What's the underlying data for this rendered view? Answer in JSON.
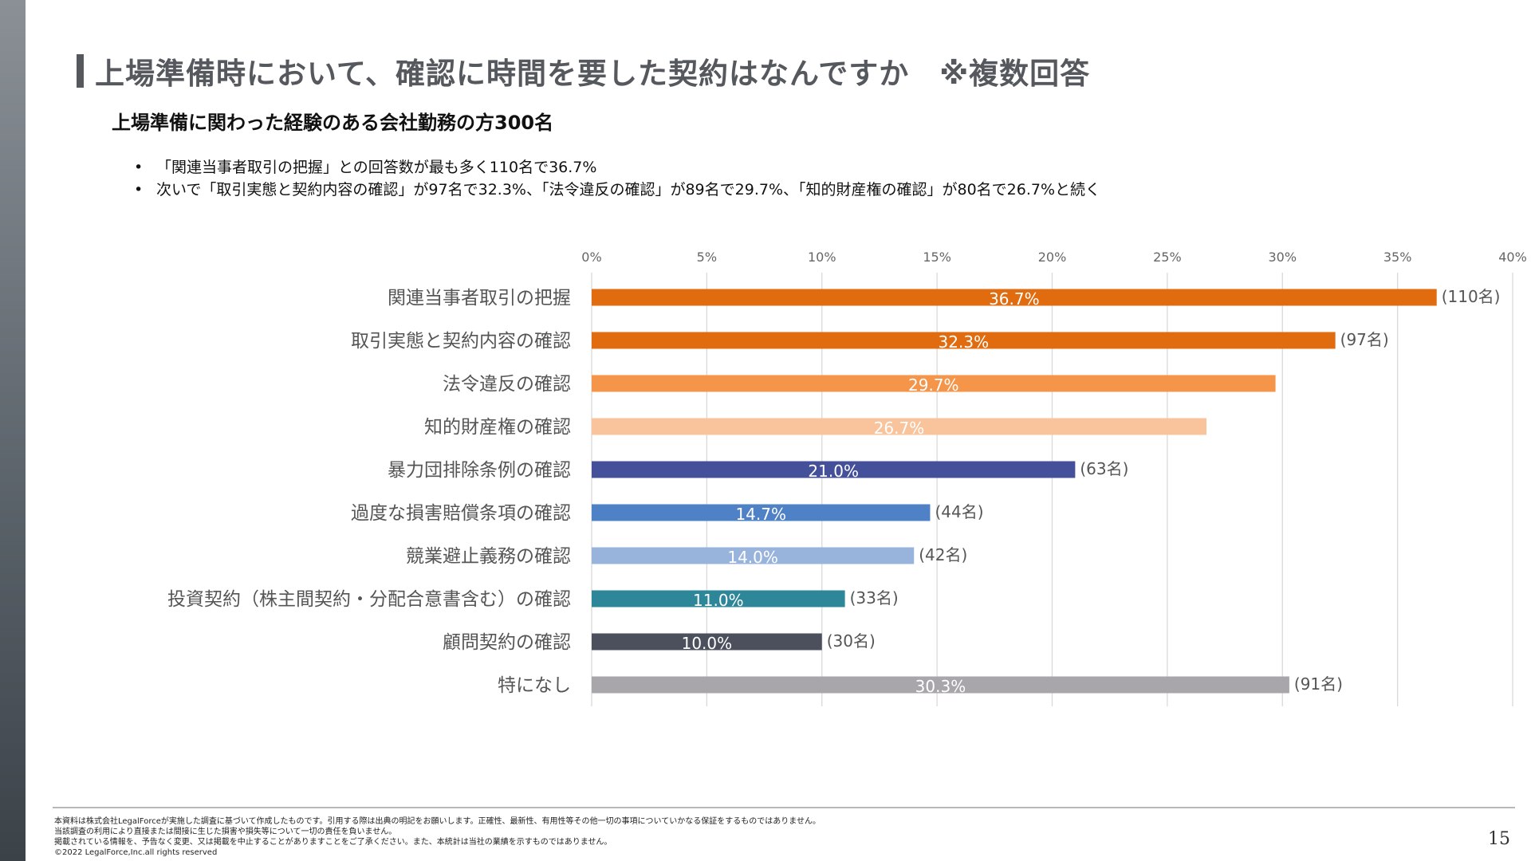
{
  "header": {
    "title": "上場準備時において、確認に時間を要した契約はなんですか　※複数回答",
    "subtitle": "上場準備に関わった経験のある会社勤務の方300名"
  },
  "summary": {
    "bullets": [
      "「関連当事者取引の把握」との回答数が最も多く110名で36.7%",
      "次いで「取引実態と契約内容の確認」が97名で32.3%、「法令違反の確認」が89名で29.7%、「知的財産権の確認」が80名で26.7%と続く"
    ]
  },
  "chart_data": {
    "type": "bar",
    "orientation": "horizontal",
    "title": "",
    "xlabel": "",
    "ylabel": "",
    "xlim": [
      0,
      40
    ],
    "x_ticks": [
      "0%",
      "5%",
      "10%",
      "15%",
      "20%",
      "25%",
      "30%",
      "35%",
      "40%"
    ],
    "grid": true,
    "legend": "none",
    "categories": [
      "関連当事者取引の把握",
      "取引実態と契約内容の確認",
      "法令違反の確認",
      "知的財産権の確認",
      "暴力団排除条例の確認",
      "過度な損害賠償条項の確認",
      "競業避止義務の確認",
      "投資契約（株主間契約・分配合意書含む）の確認",
      "顧問契約の確認",
      "特になし"
    ],
    "values": [
      36.7,
      32.3,
      29.7,
      26.7,
      21.0,
      14.7,
      14.0,
      11.0,
      10.0,
      30.3
    ],
    "value_labels": [
      "36.7%",
      "32.3%",
      "29.7%",
      "26.7%",
      "21.0%",
      "14.7%",
      "14.0%",
      "11.0%",
      "10.0%",
      "30.3%"
    ],
    "count_labels": [
      "(110名)",
      "(97名)",
      "",
      "",
      "(63名)",
      "(44名)",
      "(42名)",
      "(33名)",
      "(30名)",
      "(91名)"
    ],
    "colors": [
      "#e06c0f",
      "#e06c0f",
      "#f5954a",
      "#f9c39b",
      "#45509a",
      "#4f81c6",
      "#99b4dc",
      "#2e8699",
      "#4c4f5c",
      "#a8a6ab"
    ]
  },
  "footer": {
    "disclaimer_lines": [
      "本資料は株式会社LegalForceが実施した調査に基づいて作成したものです。引用する際は出典の明記をお願いします。正確性、最新性、有用性等その他一切の事項についていかなる保証をするものではありません。",
      "当該調査の利用により直接または間接に生じた損害や損失等について一切の責任を負いません。",
      "掲載されている情報を、予告なく変更、又は掲載を中止することがありますことをご了承ください。また、本統計は当社の業績を示すものではありません。",
      "©2022 LegalForce,Inc.all rights reserved"
    ],
    "page_number": "15"
  }
}
